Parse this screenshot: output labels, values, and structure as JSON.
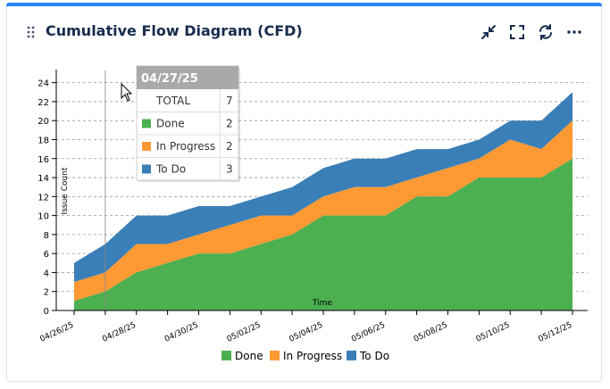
{
  "widget": {
    "title": "Cumulative Flow Diagram (CFD)",
    "icons": [
      "drag-handle-icon",
      "minimize-icon",
      "fullscreen-icon",
      "refresh-icon",
      "more-options-icon"
    ]
  },
  "colors": {
    "done": "#4caf50",
    "in_progress": "#ff9933",
    "to_do": "#3a7fb8",
    "accent": "#2684ff"
  },
  "chart_data": {
    "type": "area",
    "stacked": true,
    "xlabel": "Time",
    "ylabel": "Issue Count",
    "ylim": [
      0,
      25
    ],
    "yticks": [
      0,
      2,
      4,
      6,
      8,
      10,
      12,
      14,
      16,
      18,
      20,
      22,
      24
    ],
    "grid": "horizontal dashed",
    "legend_position": "bottom",
    "x": [
      "04/26/25",
      "04/27/25",
      "04/28/25",
      "04/29/25",
      "04/30/25",
      "05/01/25",
      "05/02/25",
      "05/03/25",
      "05/04/25",
      "05/05/25",
      "05/06/25",
      "05/07/25",
      "05/08/25",
      "05/09/25",
      "05/10/25",
      "05/11/25",
      "05/12/25"
    ],
    "xticks": [
      "04/26/25",
      "04/28/25",
      "04/30/25",
      "05/02/25",
      "05/04/25",
      "05/06/25",
      "05/08/25",
      "05/10/25",
      "05/12/25"
    ],
    "series": [
      {
        "name": "Done",
        "color": "#4caf50",
        "values": [
          1,
          2,
          4,
          5,
          6,
          6,
          7,
          8,
          10,
          10,
          10,
          12,
          12,
          14,
          14,
          14,
          16
        ]
      },
      {
        "name": "In Progress",
        "color": "#ff9933",
        "values": [
          2,
          2,
          3,
          2,
          2,
          3,
          3,
          2,
          2,
          3,
          3,
          2,
          3,
          2,
          4,
          3,
          4
        ]
      },
      {
        "name": "To Do",
        "color": "#3a7fb8",
        "values": [
          2,
          3,
          3,
          3,
          3,
          2,
          2,
          3,
          3,
          3,
          3,
          3,
          2,
          2,
          2,
          3,
          3
        ]
      }
    ],
    "hover_x": "04/27/25",
    "tooltip": {
      "date": "04/27/25",
      "rows": [
        {
          "label": "TOTAL",
          "value": "7"
        },
        {
          "label": "Done",
          "value": "2"
        },
        {
          "label": "In Progress",
          "value": "2"
        },
        {
          "label": "To Do",
          "value": "3"
        }
      ]
    }
  }
}
